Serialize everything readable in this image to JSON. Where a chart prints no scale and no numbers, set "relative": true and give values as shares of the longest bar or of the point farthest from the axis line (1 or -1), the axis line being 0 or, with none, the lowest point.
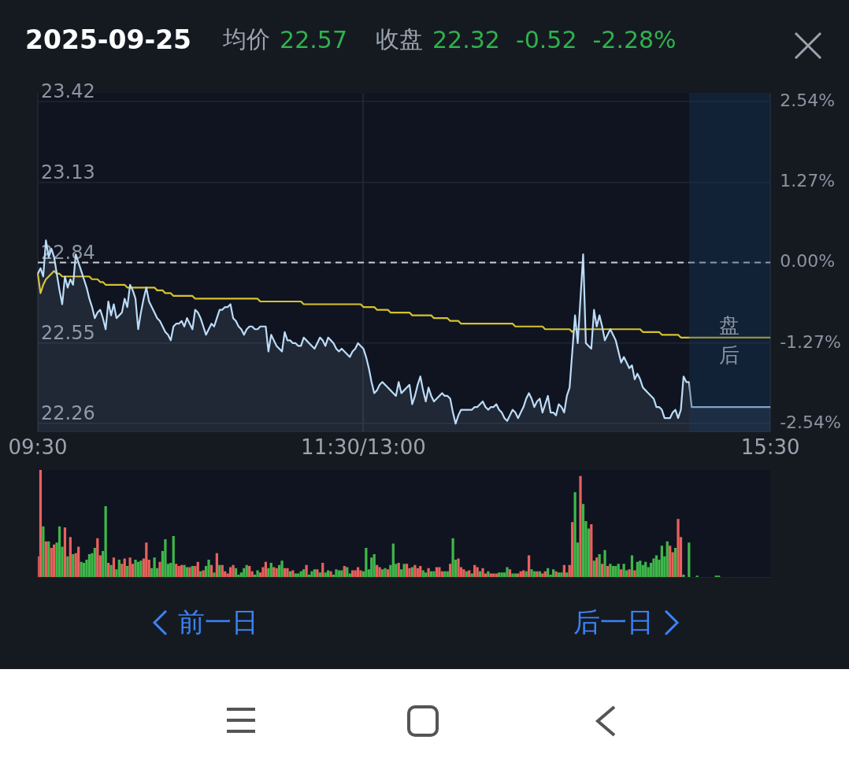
{
  "chart_data": [
    {
      "type": "area",
      "title": "2025-09-25",
      "annotations": [
        "均价",
        "22.57",
        "收盘",
        "22.32",
        "-0.52",
        "-2.28%",
        "盘后"
      ],
      "categories": [
        "09:30",
        null,
        null,
        null,
        null,
        null,
        null,
        null,
        null,
        null,
        null,
        null,
        null,
        null,
        null,
        null,
        null,
        null,
        null,
        null,
        null,
        null,
        null,
        null,
        null,
        null,
        null,
        null,
        null,
        null,
        null,
        null,
        null,
        null,
        null,
        null,
        null,
        null,
        null,
        null,
        null,
        null,
        null,
        null,
        null,
        null,
        null,
        null,
        null,
        null,
        null,
        null,
        null,
        null,
        null,
        null,
        null,
        null,
        null,
        null,
        null,
        null,
        null,
        null,
        null,
        null,
        null,
        null,
        null,
        null,
        null,
        null,
        null,
        null,
        null,
        null,
        null,
        null,
        null,
        null,
        null,
        null,
        null,
        null,
        null,
        null,
        null,
        null,
        null,
        null,
        null,
        null,
        null,
        null,
        null,
        null,
        null,
        null,
        null,
        null,
        null,
        null,
        null,
        null,
        null,
        null,
        null,
        null,
        null,
        null,
        null,
        null,
        null,
        null,
        null,
        null,
        null,
        null,
        null,
        null,
        "11:30/13:00",
        null,
        null,
        null,
        null,
        null,
        null,
        null,
        null,
        null,
        null,
        null,
        null,
        null,
        null,
        null,
        null,
        null,
        null,
        null,
        null,
        null,
        null,
        null,
        null,
        null,
        null,
        null,
        null,
        null,
        null,
        null,
        null,
        null,
        null,
        null,
        null,
        null,
        null,
        null,
        null,
        null,
        null,
        null,
        null,
        null,
        null,
        null,
        null,
        null,
        null,
        null,
        null,
        null,
        null,
        null,
        null,
        null,
        null,
        null,
        null,
        null,
        null,
        null,
        null,
        null,
        null,
        null,
        null,
        null,
        null,
        null,
        null,
        null,
        null,
        null,
        null,
        null,
        null,
        null,
        null,
        null,
        null,
        null,
        null,
        null,
        null,
        null,
        null,
        null,
        null,
        null,
        null,
        null,
        null,
        null,
        null,
        null,
        null,
        null,
        null,
        null,
        null,
        null,
        null,
        null,
        null,
        null,
        null,
        null,
        null,
        null,
        null,
        null,
        null,
        null,
        null,
        null,
        null,
        null,
        null,
        null,
        null,
        null,
        null,
        null,
        null,
        null,
        null,
        null,
        null,
        null,
        null,
        null,
        null,
        null,
        null,
        null,
        null,
        null,
        null,
        null,
        null,
        null,
        null,
        null,
        null,
        null,
        null,
        null,
        "15:30"
      ],
      "series": [
        {
          "type": "area",
          "color": "#bcdcf8",
          "values": [
            22.8,
            22.82,
            22.79,
            22.92,
            22.86,
            22.89,
            22.86,
            22.8,
            22.74,
            22.69,
            22.79,
            22.75,
            22.78,
            22.76,
            22.87,
            22.84,
            22.81,
            22.78,
            22.75,
            22.71,
            22.68,
            22.64,
            22.66,
            22.67,
            22.64,
            22.6,
            22.7,
            22.65,
            22.69,
            22.64,
            22.65,
            22.66,
            22.71,
            22.68,
            22.76,
            22.74,
            22.71,
            22.6,
            22.66,
            22.71,
            22.75,
            22.7,
            22.68,
            22.66,
            22.64,
            22.63,
            22.61,
            22.59,
            22.58,
            22.56,
            22.61,
            22.62,
            22.62,
            22.63,
            22.61,
            22.64,
            22.62,
            22.6,
            22.67,
            22.66,
            22.64,
            22.61,
            22.58,
            22.6,
            22.62,
            22.61,
            22.64,
            22.67,
            22.67,
            22.68,
            22.68,
            22.69,
            22.64,
            22.63,
            22.61,
            22.6,
            22.58,
            22.6,
            22.61,
            22.61,
            22.6,
            22.6,
            22.61,
            22.61,
            22.61,
            22.52,
            22.58,
            22.56,
            22.54,
            22.53,
            22.52,
            22.59,
            22.56,
            22.56,
            22.55,
            22.55,
            22.54,
            22.54,
            22.57,
            22.56,
            22.55,
            22.54,
            22.53,
            22.55,
            22.57,
            22.56,
            22.54,
            22.57,
            22.56,
            22.55,
            22.53,
            22.52,
            22.53,
            22.52,
            22.51,
            22.5,
            22.52,
            22.53,
            22.55,
            22.54,
            22.53,
            22.5,
            22.46,
            22.41,
            22.37,
            22.38,
            22.4,
            22.41,
            22.4,
            22.39,
            22.38,
            22.37,
            22.36,
            22.41,
            22.37,
            22.38,
            22.39,
            22.4,
            22.33,
            22.36,
            22.4,
            22.43,
            22.38,
            22.34,
            22.39,
            22.36,
            22.34,
            22.35,
            22.36,
            22.37,
            22.36,
            22.36,
            22.35,
            22.3,
            22.26,
            22.29,
            22.31,
            22.31,
            22.31,
            22.31,
            22.31,
            22.32,
            22.32,
            22.33,
            22.34,
            22.32,
            22.31,
            22.32,
            22.32,
            22.33,
            22.31,
            22.3,
            22.28,
            22.27,
            22.29,
            22.31,
            22.3,
            22.28,
            22.3,
            22.32,
            22.35,
            22.37,
            22.35,
            22.32,
            22.34,
            22.35,
            22.3,
            22.33,
            22.36,
            22.3,
            22.3,
            22.29,
            22.33,
            22.32,
            22.3,
            22.36,
            22.39,
            22.52,
            22.65,
            22.55,
            22.71,
            22.87,
            22.55,
            22.54,
            22.53,
            22.67,
            22.61,
            22.65,
            22.61,
            22.56,
            22.58,
            22.6,
            22.58,
            22.56,
            22.52,
            22.48,
            22.5,
            22.48,
            22.46,
            22.47,
            22.42,
            22.44,
            22.42,
            22.39,
            22.38,
            22.37,
            22.36,
            22.35,
            22.32,
            22.32,
            22.31,
            22.28,
            22.28,
            22.28,
            22.3,
            22.31,
            22.28,
            22.31,
            22.43,
            22.41,
            22.41,
            22.32,
            22.32,
            22.32,
            22.32,
            22.32,
            22.32,
            22.32,
            22.32,
            22.32,
            22.32,
            22.32,
            22.32,
            22.32,
            22.32,
            22.32,
            22.32,
            22.32,
            22.32,
            22.32,
            22.32,
            22.32,
            22.32,
            22.32,
            22.32,
            22.32,
            22.32,
            22.32,
            22.32,
            22.32,
            22.32
          ]
        },
        {
          "type": "line",
          "color": "#d6c22c",
          "values": [
            22.8,
            22.73,
            22.76,
            22.78,
            22.79,
            22.8,
            22.81,
            22.8,
            22.8,
            22.79,
            22.79,
            22.79,
            22.79,
            22.79,
            22.79,
            22.79,
            22.79,
            22.79,
            22.79,
            22.79,
            22.78,
            22.78,
            22.78,
            22.77,
            22.77,
            22.76,
            22.76,
            22.76,
            22.76,
            22.76,
            22.76,
            22.76,
            22.76,
            22.75,
            22.75,
            22.75,
            22.75,
            22.75,
            22.75,
            22.75,
            22.75,
            22.75,
            22.75,
            22.75,
            22.74,
            22.74,
            22.74,
            22.73,
            22.73,
            22.73,
            22.72,
            22.72,
            22.72,
            22.72,
            22.72,
            22.72,
            22.72,
            22.72,
            22.71,
            22.71,
            22.71,
            22.71,
            22.71,
            22.71,
            22.71,
            22.71,
            22.71,
            22.71,
            22.71,
            22.71,
            22.71,
            22.71,
            22.71,
            22.71,
            22.71,
            22.71,
            22.71,
            22.71,
            22.71,
            22.71,
            22.71,
            22.71,
            22.7,
            22.7,
            22.7,
            22.7,
            22.7,
            22.7,
            22.7,
            22.7,
            22.7,
            22.7,
            22.7,
            22.7,
            22.7,
            22.7,
            22.7,
            22.7,
            22.69,
            22.69,
            22.69,
            22.69,
            22.69,
            22.69,
            22.69,
            22.69,
            22.69,
            22.69,
            22.69,
            22.69,
            22.69,
            22.69,
            22.69,
            22.69,
            22.69,
            22.69,
            22.69,
            22.69,
            22.69,
            22.69,
            22.68,
            22.68,
            22.68,
            22.68,
            22.68,
            22.67,
            22.67,
            22.67,
            22.67,
            22.67,
            22.66,
            22.66,
            22.66,
            22.66,
            22.66,
            22.66,
            22.66,
            22.66,
            22.65,
            22.65,
            22.65,
            22.65,
            22.65,
            22.65,
            22.65,
            22.65,
            22.64,
            22.64,
            22.64,
            22.64,
            22.64,
            22.64,
            22.63,
            22.63,
            22.63,
            22.63,
            22.62,
            22.62,
            22.62,
            22.62,
            22.62,
            22.62,
            22.62,
            22.62,
            22.62,
            22.62,
            22.62,
            22.62,
            22.62,
            22.62,
            22.62,
            22.62,
            22.62,
            22.62,
            22.62,
            22.62,
            22.61,
            22.61,
            22.61,
            22.61,
            22.61,
            22.61,
            22.61,
            22.61,
            22.61,
            22.61,
            22.61,
            22.6,
            22.6,
            22.6,
            22.6,
            22.6,
            22.6,
            22.6,
            22.6,
            22.6,
            22.6,
            22.59,
            22.6,
            22.6,
            22.6,
            22.6,
            22.6,
            22.6,
            22.6,
            22.6,
            22.6,
            22.6,
            22.6,
            22.6,
            22.6,
            22.6,
            22.6,
            22.6,
            22.6,
            22.6,
            22.6,
            22.6,
            22.6,
            22.6,
            22.6,
            22.6,
            22.6,
            22.59,
            22.59,
            22.59,
            22.59,
            22.59,
            22.59,
            22.59,
            22.58,
            22.58,
            22.58,
            22.58,
            22.58,
            22.58,
            22.58,
            22.57,
            22.57,
            22.57,
            22.57,
            22.57,
            22.57,
            22.57,
            22.57,
            22.57,
            22.57,
            22.57,
            22.57,
            22.57,
            22.57,
            22.57,
            22.57,
            22.57,
            22.57,
            22.57,
            22.57,
            22.57,
            22.57,
            22.57,
            22.57,
            22.57,
            22.57,
            22.57,
            22.57,
            22.57,
            22.57,
            22.57,
            22.57,
            22.57,
            22.57
          ]
        }
      ],
      "ylim": [
        22.23,
        23.45
      ],
      "yticks": [
        22.26,
        22.55,
        22.84,
        23.13,
        23.42
      ],
      "y2lim": [
        -2.67,
        2.67
      ],
      "y2ticks": [
        {
          "value": -2.54,
          "label": "-2.54%"
        },
        {
          "value": -1.27,
          "label": "-1.27%"
        },
        {
          "value": 0,
          "label": "0.00%"
        },
        {
          "value": 1.27,
          "label": "1.27%"
        },
        {
          "value": 2.54,
          "label": "2.54%"
        }
      ],
      "ref_lines": [
        {
          "axis": "y",
          "value": 22.84,
          "color": "#c9ced6",
          "line_style": "dashed"
        }
      ],
      "grid": true,
      "marker": "none"
    },
    {
      "type": "bar",
      "relative": true,
      "annotations": [
        "前一日",
        "后一日"
      ],
      "categories": [
        null,
        null,
        null,
        null,
        null,
        null,
        null,
        null,
        null,
        null,
        null,
        null,
        null,
        null,
        null,
        null,
        null,
        null,
        null,
        null,
        null,
        null,
        null,
        null,
        null,
        null,
        null,
        null,
        null,
        null,
        null,
        null,
        null,
        null,
        null,
        null,
        null,
        null,
        null,
        null,
        null,
        null,
        null,
        null,
        null,
        null,
        null,
        null,
        null,
        null,
        null,
        null,
        null,
        null,
        null,
        null,
        null,
        null,
        null,
        null,
        null,
        null,
        null,
        null,
        null,
        null,
        null,
        null,
        null,
        null,
        null,
        null,
        null,
        null,
        null,
        null,
        null,
        null,
        null,
        null,
        null,
        null,
        null,
        null,
        null,
        null,
        null,
        null,
        null,
        null,
        null,
        null,
        null,
        null,
        null,
        null,
        null,
        null,
        null,
        null,
        null,
        null,
        null,
        null,
        null,
        null,
        null,
        null,
        null,
        null,
        null,
        null,
        null,
        null,
        null,
        null,
        null,
        null,
        null,
        null,
        null,
        null,
        null,
        null,
        null,
        null,
        null,
        null,
        null,
        null,
        null,
        null,
        null,
        null,
        null,
        null,
        null,
        null,
        null,
        null,
        null,
        null,
        null,
        null,
        null,
        null,
        null,
        null,
        null,
        null,
        null,
        null,
        null,
        null,
        null,
        null,
        null,
        null,
        null,
        null,
        null,
        null,
        null,
        null,
        null,
        null,
        null,
        null,
        null,
        null,
        null,
        null,
        null,
        null,
        null,
        null,
        null,
        null,
        null,
        null,
        null,
        null,
        null,
        null,
        null,
        null,
        null,
        null,
        null,
        null,
        null,
        null,
        null,
        null,
        null,
        null,
        null,
        null,
        null,
        null,
        null,
        null,
        null,
        null,
        null,
        null,
        null,
        null,
        null,
        null,
        null,
        null,
        null,
        null,
        null,
        null,
        null,
        null,
        null,
        null,
        null,
        null,
        null,
        null,
        null,
        null,
        null,
        null,
        null,
        null,
        null,
        null,
        null,
        null,
        null,
        null,
        null,
        null,
        null,
        null,
        null,
        null,
        null,
        null,
        null,
        null,
        null,
        null,
        null,
        null,
        null,
        null,
        null,
        null,
        null,
        null,
        null,
        null,
        null,
        null,
        null,
        null,
        null,
        null,
        null,
        null,
        null,
        null,
        null,
        null,
        null
      ],
      "series": [
        {
          "color": "#e8615d",
          "values": [
            0.19,
            1,
            null,
            0.33,
            null,
            0.27,
            0.3,
            null,
            null,
            null,
            0.46,
            null,
            0.37,
            null,
            0.22,
            0.28,
            null,
            null,
            null,
            null,
            null,
            null,
            0.36,
            0.2,
            null,
            null,
            0.13,
            null,
            0.18,
            null,
            null,
            0.12,
            0.17,
            null,
            0.18,
            0.12,
            null,
            null,
            null,
            0.17,
            0.32,
            0.16,
            null,
            null,
            null,
            0.14,
            null,
            null,
            null,
            null,
            null,
            0.12,
            0.1,
            0.11,
            null,
            null,
            0.09,
            null,
            0.1,
            0.14,
            null,
            0.06,
            null,
            null,
            0.11,
            null,
            0.22,
            null,
            0.11,
            0.05,
            0.03,
            0.09,
            0.11,
            null,
            null,
            null,
            null,
            null,
            0.1,
            0.05,
            null,
            null,
            0.04,
            0.09,
            0.14,
            null,
            null,
            0.09,
            0.08,
            null,
            null,
            0.08,
            0.08,
            null,
            0.06,
            null,
            null,
            null,
            null,
            0.11,
            null,
            null,
            null,
            0.07,
            null,
            0.13,
            null,
            null,
            0.05,
            null,
            null,
            null,
            null,
            0.1,
            null,
            null,
            0.06,
            0.06,
            0.09,
            0.06,
            null,
            null,
            null,
            null,
            null,
            0.11,
            0.09,
            null,
            null,
            0.07,
            null,
            null,
            null,
            0.13,
            null,
            null,
            0.12,
            0.08,
            null,
            0.11,
            0.08,
            0.1,
            null,
            null,
            0.08,
            null,
            null,
            0.09,
            0.09,
            0.05,
            null,
            null,
            0.12,
            null,
            null,
            0.17,
            0.09,
            0.07,
            null,
            0.06,
            null,
            0.11,
            0.09,
            null,
            0.08,
            0.03,
            null,
            0.03,
            0.03,
            0.03,
            null,
            null,
            null,
            null,
            0.07,
            null,
            null,
            0.03,
            0.05,
            0.06,
            null,
            0.2,
            null,
            null,
            0.05,
            null,
            0.03,
            0.05,
            null,
            null,
            null,
            0.05,
            null,
            null,
            0.11,
            null,
            0.11,
            0.51,
            null,
            null,
            0.94,
            null,
            null,
            null,
            0.49,
            null,
            0.18,
            null,
            0.12,
            null,
            0.1,
            null,
            null,
            null,
            null,
            0.07,
            null,
            null,
            0.07,
            null,
            0.06,
            null,
            null,
            null,
            null,
            null,
            null,
            null,
            null,
            null,
            null,
            null,
            null,
            0.29,
            0.23,
            null,
            0.54,
            0.37,
            null,
            null,
            null,
            null,
            null,
            null,
            null,
            null,
            null,
            null,
            null,
            null,
            null,
            null,
            null,
            null,
            null,
            null,
            null,
            null,
            null,
            null,
            null,
            null,
            null,
            null,
            null,
            null,
            null,
            null,
            null,
            null,
            null
          ]
        },
        {
          "color": "#3fb64a",
          "values": [
            null,
            null,
            0.47,
            null,
            0.33,
            null,
            null,
            0.32,
            0.47,
            0.28,
            null,
            0.19,
            null,
            0.21,
            null,
            null,
            0.14,
            0.13,
            0.16,
            0.21,
            0.22,
            0.27,
            null,
            null,
            0.24,
            0.66,
            null,
            0.11,
            null,
            0.07,
            0.16,
            null,
            null,
            0.1,
            null,
            null,
            0.16,
            0.14,
            0.15,
            null,
            null,
            null,
            0.08,
            0.18,
            0.08,
            null,
            0.24,
            0.35,
            0.12,
            0.13,
            0.38,
            null,
            null,
            null,
            0.11,
            0.09,
            null,
            0.1,
            null,
            null,
            0.05,
            null,
            0.1,
            0.16,
            null,
            0.04,
            null,
            0.11,
            null,
            null,
            null,
            null,
            null,
            0.08,
            0.02,
            0.04,
            0.08,
            0.11,
            null,
            null,
            0.02,
            0.06,
            null,
            null,
            null,
            0.08,
            0.13,
            null,
            null,
            0.11,
            0.15,
            null,
            null,
            0.05,
            null,
            0.03,
            0.03,
            0.05,
            0.07,
            null,
            0.02,
            0.05,
            0.07,
            null,
            0.04,
            null,
            0.04,
            0.06,
            null,
            0.02,
            0.07,
            0.06,
            0.06,
            null,
            0.09,
            0.03,
            null,
            null,
            null,
            null,
            0.05,
            0.27,
            0.07,
            0.18,
            0.21,
            null,
            null,
            0.07,
            0.08,
            null,
            0.11,
            0.31,
            0.12,
            null,
            0.07,
            0.12,
            null,
            null,
            0.09,
            null,
            null,
            null,
            0.06,
            0.04,
            null,
            0.05,
            0.05,
            null,
            null,
            null,
            0.05,
            0.05,
            null,
            0.36,
            0.16,
            null,
            null,
            null,
            0.05,
            null,
            0.03,
            null,
            null,
            0.05,
            null,
            null,
            0.05,
            null,
            null,
            null,
            0.04,
            0.04,
            0.04,
            0.09,
            null,
            0.03,
            0.03,
            null,
            null,
            null,
            0.05,
            null,
            0.07,
            0.05,
            null,
            0.05,
            null,
            null,
            0.08,
            0.02,
            0.07,
            null,
            0.04,
            0.04,
            null,
            0.04,
            null,
            null,
            0.79,
            0.32,
            null,
            0.68,
            0.52,
            0.45,
            null,
            0.15,
            null,
            0.21,
            null,
            0.25,
            null,
            0.12,
            0.1,
            0.1,
            0.12,
            null,
            0.12,
            0.06,
            null,
            0.2,
            null,
            0.14,
            0.15,
            0.11,
            0.14,
            0.09,
            0.13,
            0.17,
            0.2,
            0.16,
            0.29,
            0.19,
            0.33,
            null,
            null,
            0.27,
            null,
            null,
            0.02,
            null,
            0.32,
            null,
            null,
            0.01,
            null,
            null,
            null,
            null,
            null,
            null,
            0.01,
            0.01,
            null,
            null,
            null,
            null,
            null,
            null,
            null,
            null,
            null,
            null,
            null,
            null,
            null,
            null,
            null,
            null,
            null,
            null,
            null
          ]
        }
      ],
      "tick_labels": false
    }
  ]
}
